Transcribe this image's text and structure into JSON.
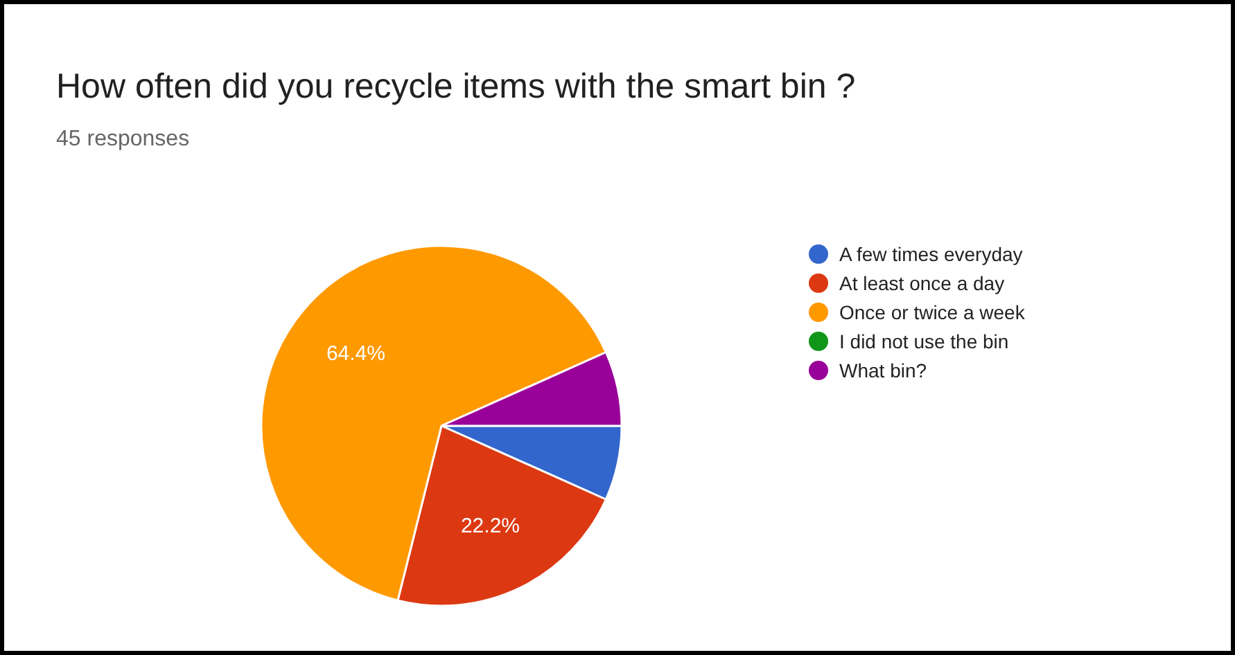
{
  "chart_data": {
    "type": "pie",
    "title": "How often did you recycle items with the smart bin ?",
    "subtitle": "45 responses",
    "categories": [
      "A few times everyday",
      "At least once a day",
      "Once or twice a week",
      "I did not use the bin",
      "What bin?"
    ],
    "values": [
      6.7,
      22.2,
      64.4,
      0,
      6.7
    ],
    "colors": [
      "#3366cc",
      "#dc3912",
      "#ff9900",
      "#109618",
      "#990099"
    ],
    "value_labels": [
      null,
      "22.2%",
      "64.4%",
      null,
      null
    ],
    "legend": "right"
  }
}
